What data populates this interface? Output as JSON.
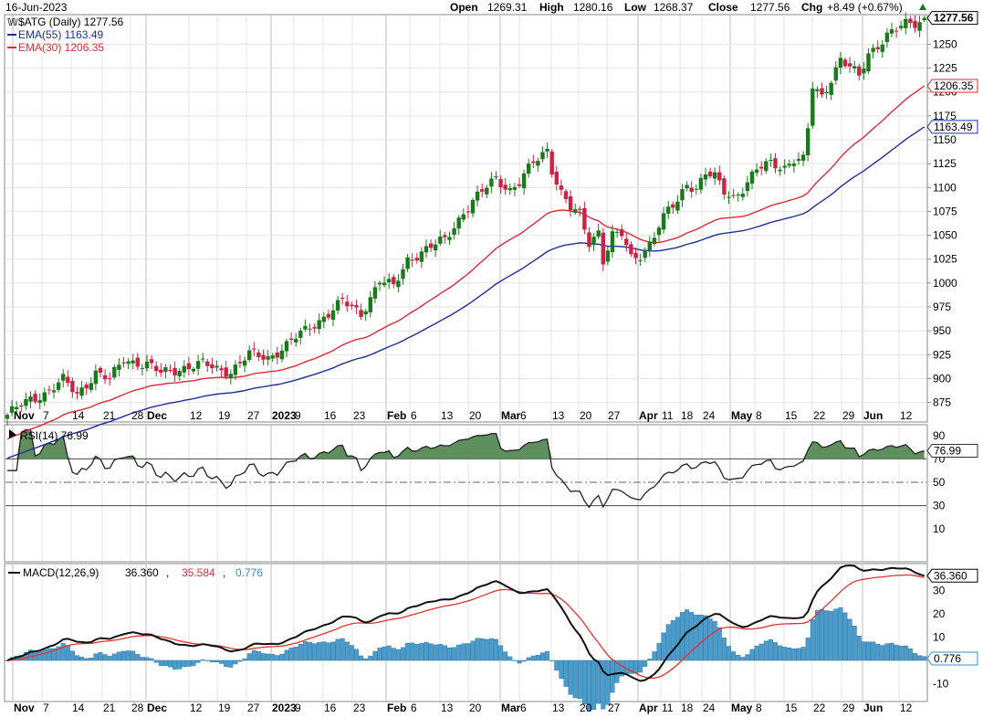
{
  "header": {
    "date": "16-Jun-2023",
    "open_label": "Open",
    "open": "1269.31",
    "high_label": "High",
    "high": "1280.16",
    "low_label": "Low",
    "low": "1268.37",
    "close_label": "Close",
    "close": "1277.56",
    "chg_label": "Chg",
    "chg": "+8.49 (+0.67%)",
    "symbol_legend": "$ATG (Daily) 1277.56",
    "ema55_legend": "EMA(55) 1163.49",
    "ema30_legend": "EMA(30) 1206.35"
  },
  "colors": {
    "up": "#1a7a1a",
    "down": "#cc2244",
    "ema55": "#1f2f9a",
    "ema30": "#e02a3a",
    "rsi_fill": "#5f8f5f",
    "hist": "#4a9ccc",
    "macd": "#111111",
    "signal": "#e83030"
  },
  "x_labels": [
    {
      "label": "Nov",
      "bold": true
    },
    {
      "label": "7"
    },
    {
      "label": "14"
    },
    {
      "label": "21"
    },
    {
      "label": "28"
    },
    {
      "label": "Dec",
      "bold": true
    },
    {
      "label": "12"
    },
    {
      "label": "19"
    },
    {
      "label": "27"
    },
    {
      "label": "2023",
      "bold": true
    },
    {
      "label": "9"
    },
    {
      "label": "16"
    },
    {
      "label": "23"
    },
    {
      "label": "Feb",
      "bold": true
    },
    {
      "label": "6"
    },
    {
      "label": "13"
    },
    {
      "label": "20"
    },
    {
      "label": "Mar",
      "bold": true
    },
    {
      "label": "6"
    },
    {
      "label": "13"
    },
    {
      "label": "20"
    },
    {
      "label": "27"
    },
    {
      "label": "Apr",
      "bold": true
    },
    {
      "label": "11"
    },
    {
      "label": "18"
    },
    {
      "label": "24"
    },
    {
      "label": "May",
      "bold": true
    },
    {
      "label": "8"
    },
    {
      "label": "15"
    },
    {
      "label": "22"
    },
    {
      "label": "29"
    },
    {
      "label": "Jun",
      "bold": true
    },
    {
      "label": "12"
    }
  ],
  "price_panel": {
    "yticks": [
      "875",
      "900",
      "925",
      "950",
      "975",
      "1000",
      "1025",
      "1050",
      "1075",
      "1100",
      "1125",
      "1150",
      "1175",
      "1200",
      "1225",
      "1250"
    ],
    "tags": {
      "last": "1277.56",
      "ema30": "1206.35",
      "ema55": "1163.49"
    }
  },
  "rsi_panel": {
    "legend": "RSI(14) 76.99",
    "yticks": [
      "90",
      "70",
      "50",
      "30",
      "10"
    ],
    "tag": "76.99"
  },
  "macd_panel": {
    "legend_name": "MACD(12,26,9)",
    "legend_macd": "36.360",
    "legend_signal": "35.584",
    "legend_hist": "0.776",
    "yticks": [
      "30",
      "20",
      "10",
      "-10"
    ],
    "tags": {
      "macd": "36.360",
      "hist": "0.776"
    }
  },
  "chart_data": {
    "type": "candlestick",
    "symbol": "$ATG",
    "period": "Daily",
    "ylim_price": [
      855,
      1290
    ],
    "price_points": [
      [
        0,
        862
      ],
      [
        5,
        878
      ],
      [
        8,
        885
      ],
      [
        12,
        898
      ],
      [
        15,
        883
      ],
      [
        19,
        907
      ],
      [
        22,
        898
      ],
      [
        25,
        920
      ],
      [
        30,
        915
      ],
      [
        33,
        905
      ],
      [
        38,
        912
      ],
      [
        42,
        915
      ],
      [
        45,
        910
      ],
      [
        48,
        908
      ],
      [
        52,
        925
      ],
      [
        56,
        922
      ],
      [
        60,
        935
      ],
      [
        64,
        950
      ],
      [
        68,
        965
      ],
      [
        72,
        980
      ],
      [
        76,
        968
      ],
      [
        80,
        1003
      ],
      [
        83,
        995
      ],
      [
        86,
        1025
      ],
      [
        90,
        1035
      ],
      [
        94,
        1045
      ],
      [
        98,
        1075
      ],
      [
        102,
        1095
      ],
      [
        105,
        1110
      ],
      [
        108,
        1098
      ],
      [
        110,
        1105
      ],
      [
        113,
        1125
      ],
      [
        115,
        1135
      ],
      [
        116,
        1140
      ],
      [
        117,
        1120
      ],
      [
        119,
        1095
      ],
      [
        121,
        1078
      ],
      [
        123,
        1070
      ],
      [
        125,
        1042
      ],
      [
        127,
        1055
      ],
      [
        128,
        1025
      ],
      [
        130,
        1050
      ],
      [
        132,
        1050
      ],
      [
        134,
        1025
      ],
      [
        136,
        1030
      ],
      [
        138,
        1042
      ],
      [
        140,
        1060
      ],
      [
        142,
        1075
      ],
      [
        144,
        1085
      ],
      [
        146,
        1105
      ],
      [
        148,
        1100
      ],
      [
        150,
        1115
      ],
      [
        152,
        1110
      ],
      [
        154,
        1095
      ],
      [
        156,
        1090
      ],
      [
        158,
        1100
      ],
      [
        161,
        1118
      ],
      [
        164,
        1125
      ],
      [
        167,
        1122
      ],
      [
        169,
        1130
      ],
      [
        171,
        1128
      ],
      [
        172,
        1160
      ],
      [
        173,
        1205
      ],
      [
        175,
        1195
      ],
      [
        177,
        1215
      ],
      [
        179,
        1235
      ],
      [
        181,
        1225
      ],
      [
        183,
        1215
      ],
      [
        185,
        1240
      ],
      [
        187,
        1250
      ],
      [
        189,
        1260
      ],
      [
        191,
        1265
      ],
      [
        193,
        1270
      ],
      [
        195,
        1272
      ],
      [
        197,
        1277.56
      ]
    ],
    "ema55_last": 1163.49,
    "ema30_last": 1206.35,
    "rsi_last": 76.99,
    "rsi_levels": [
      30,
      50,
      70
    ],
    "macd_last": 36.36,
    "signal_last": 35.584,
    "hist_last": 0.776
  }
}
